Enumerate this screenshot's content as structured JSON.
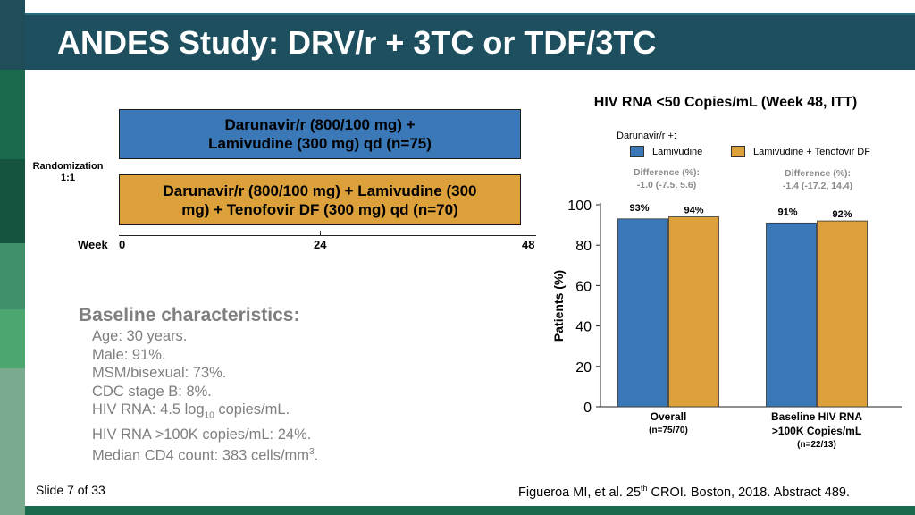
{
  "slide": {
    "title": "ANDES Study: DRV/r + 3TC or TDF/3TC",
    "number": "Slide 7 of 33"
  },
  "colors": {
    "header": "#1d4f5e",
    "lamivudine": "#3a78b7",
    "lamivudine_tdf": "#dca13a",
    "baseline_text": "#7f7f7f"
  },
  "design": {
    "arms": [
      {
        "line1": "Darunavir/r (800/100 mg) +",
        "line2": "Lamivudine (300 mg) qd (n=75)"
      },
      {
        "line1": "Darunavir/r (800/100 mg) + Lamivudine (300",
        "line2": "mg) + Tenofovir DF (300 mg) qd (n=70)"
      }
    ],
    "randomization_line1": "Randomization",
    "randomization_line2": "1:1",
    "week_label": "Week",
    "weeks": [
      "0",
      "24",
      "48"
    ]
  },
  "baseline": {
    "title": "Baseline characteristics:",
    "items": [
      {
        "text": "Age: 30 years."
      },
      {
        "text": "Male: 91%."
      },
      {
        "text": "MSM/bisexual: 73%."
      },
      {
        "text": "CDC stage B: 8%."
      },
      {
        "pre": "HIV RNA: 4.5 log",
        "sub": "10",
        "post": " copies/mL."
      },
      {
        "text": "HIV RNA >100K copies/mL: 24%."
      },
      {
        "pre": "Median CD4 count: 383 cells/mm",
        "sup": "3",
        "post": "."
      }
    ]
  },
  "citation": {
    "pre": "Figueroa MI, et al. 25",
    "sup": "th",
    "post": " CROI. Boston, 2018. Abstract 489."
  },
  "chart_data": {
    "type": "bar",
    "title": "HIV RNA <50 Copies/mL (Week 48, ITT)",
    "legend_title": "Darunavir/r +:",
    "ylabel": "Patients (%)",
    "ylim": [
      0,
      100
    ],
    "yticks": [
      "0",
      "20",
      "40",
      "60",
      "80",
      "100"
    ],
    "categories": [
      {
        "label": "Overall",
        "sub": "(n=75/70)"
      },
      {
        "label": "Baseline HIV RNA >100K Copies/mL",
        "label1": "Baseline HIV RNA",
        "label2": ">100K Copies/mL",
        "sub": "(n=22/13)"
      }
    ],
    "series": [
      {
        "name": "Lamivudine",
        "values": [
          93,
          91
        ],
        "labels": [
          "93%",
          "91%"
        ],
        "color": "#3a78b7"
      },
      {
        "name": "Lamivudine + Tenofovir DF",
        "values": [
          94,
          92
        ],
        "labels": [
          "94%",
          "92%"
        ],
        "color": "#dca13a"
      }
    ],
    "differences": [
      {
        "label": "Difference (%):",
        "value": "-1.0 (-7.5, 5.6)"
      },
      {
        "label": "Difference (%):",
        "value": "-1.4 (-17.2, 14.4)"
      }
    ]
  }
}
